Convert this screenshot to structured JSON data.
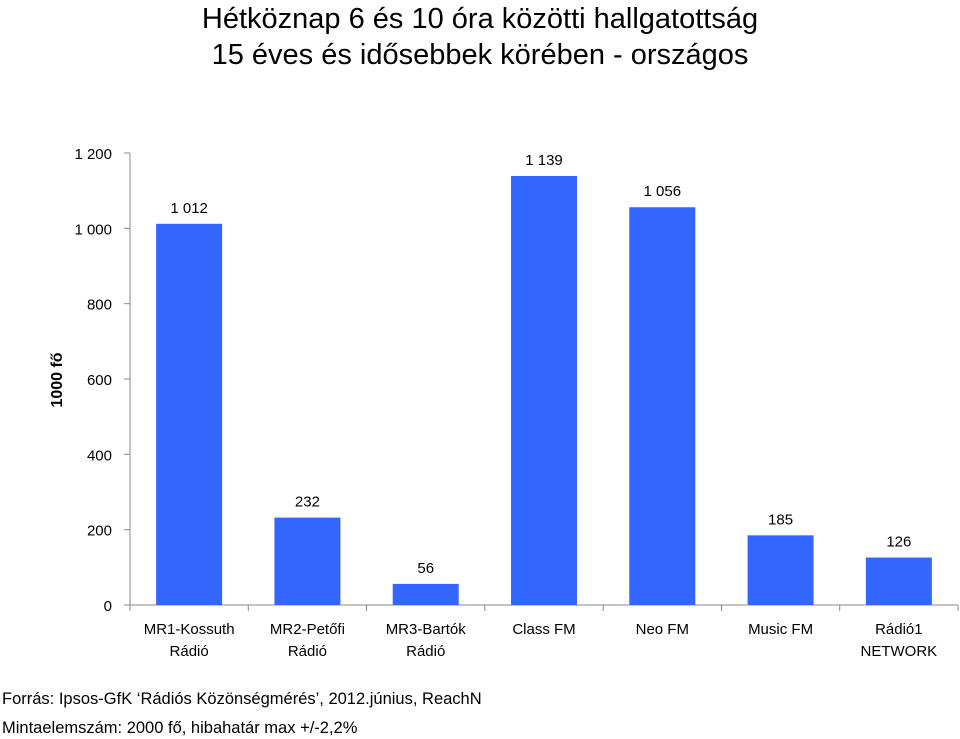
{
  "chart_data": {
    "type": "bar",
    "title": "Hétköznap 6 és 10 óra közötti hallgatottság",
    "subtitle": "15 éves és idősebbek körében - országos",
    "ylabel": "1000 fő",
    "xlabel": "",
    "ylim": [
      0,
      1200
    ],
    "yticks": [
      0,
      200,
      400,
      600,
      800,
      1000,
      1200
    ],
    "ytick_labels": [
      "0",
      "200",
      "400",
      "600",
      "800",
      "1 000",
      "1 200"
    ],
    "grid": false,
    "legend": "none",
    "categories": [
      [
        "MR1-Kossuth",
        "Rádió"
      ],
      [
        "MR2-Petőfi",
        "Rádió"
      ],
      [
        "MR3-Bartók",
        "Rádió"
      ],
      [
        "Class FM"
      ],
      [
        "Neo FM"
      ],
      [
        "Music FM"
      ],
      [
        "Rádió1",
        "NETWORK"
      ]
    ],
    "values": [
      1012,
      232,
      56,
      1139,
      1056,
      185,
      126
    ],
    "value_labels": [
      "1 012",
      "232",
      "56",
      "1 139",
      "1 056",
      "185",
      "126"
    ],
    "bar_color": "#3366FF"
  },
  "footer": {
    "source": "Forrás: Ipsos-GfK ‘Rádiós Közönségmérés’, 2012.június, ReachN",
    "sample": "Mintaelemszám: 2000 fő, hibahatár max +/-2,2%"
  }
}
